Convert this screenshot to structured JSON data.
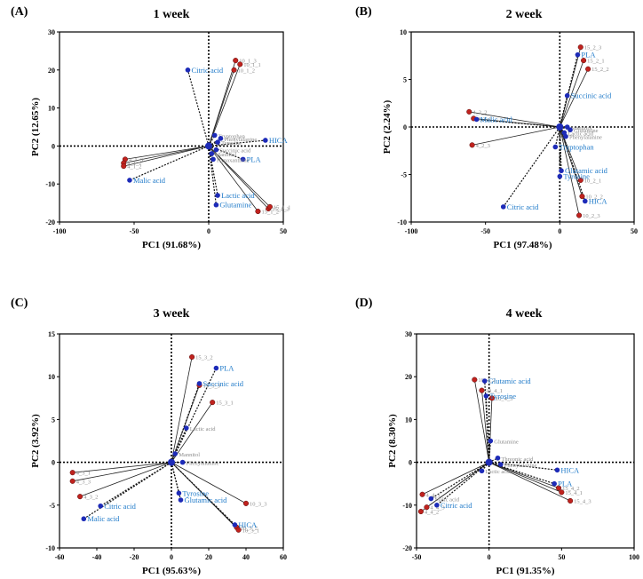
{
  "figure": {
    "accent_blue": "#1f7ac9",
    "score_red": "#c0221e",
    "loading_blue": "#1d2bb8",
    "label_gray": "#8c8c8c"
  },
  "chart_data": [
    {
      "type": "scatter",
      "panel_label": "(A)",
      "title": "1 week",
      "xlabel": "PC1 (91.68%)",
      "ylabel": "PC2 (12.65%)",
      "xlim": [
        -100,
        50
      ],
      "ylim": [
        -20,
        30
      ],
      "xticks": [
        -100,
        -50,
        0,
        50
      ],
      "yticks": [
        -20,
        -10,
        0,
        10,
        20,
        30
      ],
      "xtick_labels": [
        "-100",
        "-50",
        "0",
        "50"
      ],
      "ytick_labels": [
        "-20",
        "-10",
        "0",
        "10",
        "20",
        "30"
      ],
      "scores": [
        {
          "label": "10_1_3",
          "x": 18,
          "y": 22.5
        },
        {
          "label": "10_1_1",
          "x": 21,
          "y": 21.5
        },
        {
          "label": "10_1_2",
          "x": 17,
          "y": 20
        },
        {
          "label": "4_1_3",
          "x": -56,
          "y": -3.5
        },
        {
          "label": "4_1_1",
          "x": -57,
          "y": -4.5
        },
        {
          "label": "4_1_2",
          "x": -57,
          "y": -5.3
        },
        {
          "label": "15_1_2",
          "x": 33,
          "y": -17.2
        },
        {
          "label": "15_1_3",
          "x": 40,
          "y": -16.5
        },
        {
          "label": "15_1_1",
          "x": 41,
          "y": -16
        }
      ],
      "loadings": [
        {
          "label": "Citric acid",
          "x": -14,
          "y": 20,
          "highlight": true
        },
        {
          "label": "HICA",
          "x": 38,
          "y": 1.5,
          "highlight": true
        },
        {
          "label": "PLA",
          "x": 23,
          "y": -3.5,
          "highlight": true
        },
        {
          "label": "Malic acid",
          "x": -53,
          "y": -9,
          "highlight": true
        },
        {
          "label": "Lactic acid",
          "x": 6,
          "y": -13,
          "highlight": true
        },
        {
          "label": "Glutamine",
          "x": 5,
          "y": -15.5,
          "highlight": true
        },
        {
          "label": "Tryptophan",
          "x": 4,
          "y": 2.8,
          "highlight": false
        },
        {
          "label": "Phenylalanine",
          "x": 8,
          "y": 2,
          "highlight": false
        },
        {
          "label": "Tyrosine",
          "x": 6,
          "y": 1,
          "highlight": false
        },
        {
          "label": "Succinic acid",
          "x": 5,
          "y": -1,
          "highlight": false
        },
        {
          "label": "Mannitol",
          "x": 2,
          "y": -2,
          "highlight": false
        },
        {
          "label": "Hypaxanthine",
          "x": 3,
          "y": -3.5,
          "highlight": false
        }
      ]
    },
    {
      "type": "scatter",
      "panel_label": "(B)",
      "title": "2 week",
      "xlabel": "PC1 (97.48%)",
      "ylabel": "PC2 (2.24%)",
      "xlim": [
        -100,
        50
      ],
      "ylim": [
        -10,
        10
      ],
      "xticks": [
        -100,
        -50,
        0,
        50
      ],
      "yticks": [
        -10,
        -5,
        0,
        5,
        10
      ],
      "xtick_labels": [
        "-100",
        "-50",
        "0",
        "50"
      ],
      "ytick_labels": [
        "-10",
        "-5",
        "0",
        "5",
        "10"
      ],
      "scores": [
        {
          "label": "15_2_3",
          "x": 14,
          "y": 8.4
        },
        {
          "label": "15_2_1",
          "x": 16,
          "y": 7
        },
        {
          "label": "15_2_2",
          "x": 19,
          "y": 6.1
        },
        {
          "label": "4_2_2",
          "x": -61,
          "y": 1.6
        },
        {
          "label": "4_2_1",
          "x": -58,
          "y": 0.9
        },
        {
          "label": "4_2_3",
          "x": -59,
          "y": -1.9
        },
        {
          "label": "10_2_1",
          "x": 14,
          "y": -5.6
        },
        {
          "label": "10_2_2",
          "x": 15,
          "y": -7.3
        },
        {
          "label": "10_2_3",
          "x": 13,
          "y": -9.3
        }
      ],
      "loadings": [
        {
          "label": "PLA",
          "x": 12,
          "y": 7.6,
          "highlight": true
        },
        {
          "label": "Succinic acid",
          "x": 5,
          "y": 3.3,
          "highlight": true
        },
        {
          "label": "Malic acid",
          "x": -56,
          "y": 0.8,
          "highlight": true
        },
        {
          "label": "Tryptophan",
          "x": -3,
          "y": -2.1,
          "highlight": true
        },
        {
          "label": "Glutamic acid",
          "x": 1,
          "y": -4.6,
          "highlight": true
        },
        {
          "label": "Tyrosine",
          "x": 0,
          "y": -5.2,
          "highlight": true
        },
        {
          "label": "HICA",
          "x": 17,
          "y": -7.8,
          "highlight": true
        },
        {
          "label": "Citric acid",
          "x": -38,
          "y": -8.4,
          "highlight": true
        },
        {
          "label": "Mannitol",
          "x": 5,
          "y": 0,
          "highlight": false
        },
        {
          "label": "Glutamine",
          "x": 7,
          "y": -0.3,
          "highlight": false
        },
        {
          "label": "Phenylalanine",
          "x": 4,
          "y": -1,
          "highlight": false
        },
        {
          "label": "Lactic acid",
          "x": 3,
          "y": -0.6,
          "highlight": false
        }
      ]
    },
    {
      "type": "scatter",
      "panel_label": "(C)",
      "title": "3 week",
      "xlabel": "PC1 (95.63%)",
      "ylabel": "PC2 (3.92%)",
      "xlim": [
        -60,
        60
      ],
      "ylim": [
        -10,
        15
      ],
      "xticks": [
        -60,
        -40,
        -20,
        0,
        20,
        40,
        60
      ],
      "yticks": [
        -10,
        -5,
        0,
        5,
        10,
        15
      ],
      "xtick_labels": [
        "-60",
        "-40",
        "-20",
        "0",
        "20",
        "40",
        "60"
      ],
      "ytick_labels": [
        "-10",
        "-5",
        "0",
        "5",
        "10",
        "15"
      ],
      "scores": [
        {
          "label": "15_3_2",
          "x": 11,
          "y": 12.3
        },
        {
          "label": "15_3_3",
          "x": 15,
          "y": 9
        },
        {
          "label": "15_3_1",
          "x": 22,
          "y": 7
        },
        {
          "label": "4_3_1",
          "x": -53,
          "y": -1.2
        },
        {
          "label": "4_3_3",
          "x": -53,
          "y": -2.2
        },
        {
          "label": "4_3_2",
          "x": -49,
          "y": -4
        },
        {
          "label": "10_3_3",
          "x": 40,
          "y": -4.8
        },
        {
          "label": "10_3_2",
          "x": 35,
          "y": -7.6
        },
        {
          "label": "10_3_1",
          "x": 36,
          "y": -7.9
        }
      ],
      "loadings": [
        {
          "label": "PLA",
          "x": 24,
          "y": 11,
          "highlight": true
        },
        {
          "label": "Succinic acid",
          "x": 15,
          "y": 9.2,
          "highlight": true
        },
        {
          "label": "Lactic acid",
          "x": 8,
          "y": 4,
          "highlight": false
        },
        {
          "label": "Mannitol",
          "x": 2,
          "y": 1,
          "highlight": false
        },
        {
          "label": "Phenylalanine",
          "x": 6,
          "y": 0,
          "highlight": false
        },
        {
          "label": "Tyrosine",
          "x": 4,
          "y": -3.6,
          "highlight": true
        },
        {
          "label": "Glutamic acid",
          "x": 5,
          "y": -4.4,
          "highlight": true
        },
        {
          "label": "Citric acid",
          "x": -38,
          "y": -5.1,
          "highlight": true
        },
        {
          "label": "Malic acid",
          "x": -47,
          "y": -6.6,
          "highlight": true
        },
        {
          "label": "HICA",
          "x": 34,
          "y": -7.3,
          "highlight": true
        }
      ]
    },
    {
      "type": "scatter",
      "panel_label": "(D)",
      "title": "4 week",
      "xlabel": "PC1 (91.35%)",
      "ylabel": "PC2 (8.30%)",
      "xlim": [
        -50,
        100
      ],
      "ylim": [
        -20,
        30
      ],
      "xticks": [
        -50,
        0,
        50,
        100
      ],
      "yticks": [
        -20,
        -10,
        0,
        10,
        20,
        30
      ],
      "xtick_labels": [
        "-50",
        "0",
        "50",
        "100"
      ],
      "ytick_labels": [
        "-20",
        "-10",
        "0",
        "10",
        "20",
        "30"
      ],
      "scores": [
        {
          "label": "10_4_2",
          "x": -10,
          "y": 19.3
        },
        {
          "label": "10_4_1",
          "x": -5,
          "y": 16.8
        },
        {
          "label": "10_4_3",
          "x": 2,
          "y": 15
        },
        {
          "label": "4_4_1",
          "x": -46,
          "y": -7.5
        },
        {
          "label": "4_4_3",
          "x": -43,
          "y": -10.5
        },
        {
          "label": "4_4_2",
          "x": -47,
          "y": -11.5
        },
        {
          "label": "15_4_2",
          "x": 48,
          "y": -6
        },
        {
          "label": "15_4_1",
          "x": 50,
          "y": -7
        },
        {
          "label": "15_4_3",
          "x": 56,
          "y": -9
        }
      ],
      "loadings": [
        {
          "label": "Glutamic acid",
          "x": -3,
          "y": 19,
          "highlight": true
        },
        {
          "label": "Tyrosine",
          "x": -2,
          "y": 15.5,
          "highlight": true
        },
        {
          "label": "Glutamine",
          "x": 1,
          "y": 5,
          "highlight": false
        },
        {
          "label": "Threonic acid",
          "x": 6,
          "y": 1,
          "highlight": false
        },
        {
          "label": "Phenylalanine",
          "x": 8,
          "y": -0.5,
          "highlight": false
        },
        {
          "label": "Lactic acid",
          "x": -5,
          "y": -2,
          "highlight": false
        },
        {
          "label": "HICA",
          "x": 47,
          "y": -1.8,
          "highlight": true
        },
        {
          "label": "PLA",
          "x": 45,
          "y": -5,
          "highlight": true
        },
        {
          "label": "Citric acid",
          "x": -36,
          "y": -10,
          "highlight": true
        },
        {
          "label": "Malic acid",
          "x": -40,
          "y": -8.5,
          "highlight": false
        }
      ]
    }
  ]
}
